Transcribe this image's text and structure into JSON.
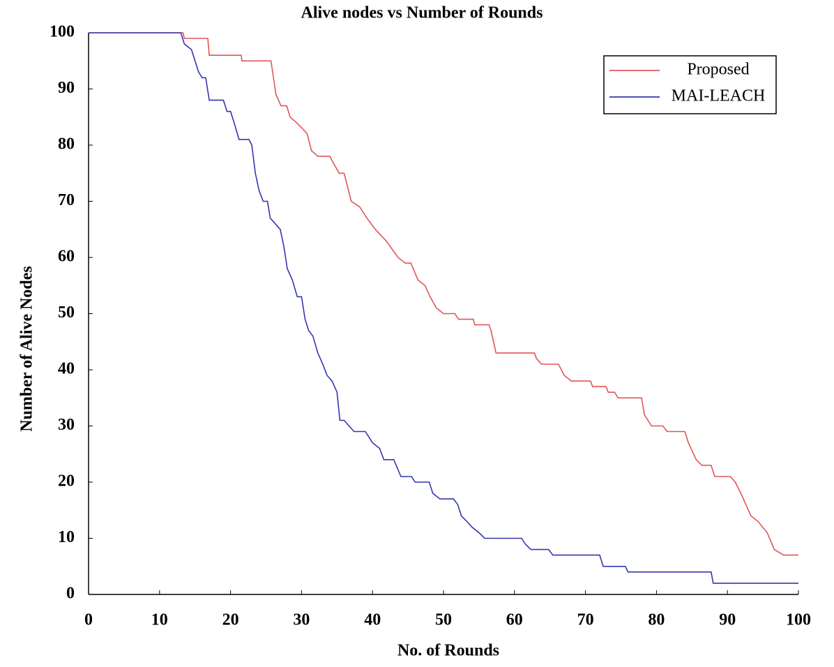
{
  "chart_data": {
    "type": "line",
    "title": "Alive nodes vs Number of Rounds",
    "x_label": "No. of Rounds",
    "y_label": "Number of Alive Nodes",
    "xlim": [
      0,
      100
    ],
    "ylim": [
      0,
      100
    ],
    "xticks": [
      0,
      10,
      20,
      30,
      40,
      50,
      60,
      70,
      80,
      90,
      100
    ],
    "yticks": [
      0,
      10,
      20,
      30,
      40,
      50,
      60,
      70,
      80,
      90,
      100
    ],
    "legend": "upper right",
    "series": [
      {
        "name": "Proposed",
        "color": "#e05555",
        "x": [
          0,
          13.3,
          13.5,
          16.8,
          17,
          21.5,
          21.6,
          25.7,
          26.4,
          27.1,
          27.9,
          28.4,
          29.3,
          30.1,
          30.8,
          31.4,
          32.3,
          34,
          34.4,
          35.3,
          36,
          36.4,
          37,
          38.2,
          39.2,
          40.4,
          41.9,
          43.6,
          44.6,
          45.4,
          46.4,
          47.4,
          48.1,
          49,
          50,
          51.6,
          52.1,
          54.2,
          54.4,
          56.4,
          56.7,
          57.4,
          62.8,
          63.1,
          63.8,
          66.2,
          67,
          68,
          70.7,
          71,
          72.9,
          73.2,
          74.1,
          74.6,
          77.9,
          78.3,
          79.3,
          80.9,
          81.5,
          84,
          84.5,
          85.6,
          86.4,
          87.7,
          88.2,
          90.4,
          91.1,
          91.9,
          93.3,
          94.3,
          95.6,
          96.6,
          97.9,
          100
        ],
        "values": [
          100,
          100,
          99,
          99,
          96,
          96,
          95,
          95,
          89,
          87,
          87,
          85,
          84,
          83,
          82,
          79,
          78,
          78,
          77,
          75,
          75,
          73,
          70,
          69,
          67,
          65,
          63,
          60,
          59,
          59,
          56,
          55,
          53,
          51,
          50,
          50,
          49,
          49,
          48,
          48,
          47,
          43,
          43,
          42,
          41,
          41,
          39,
          38,
          38,
          37,
          37,
          36,
          36,
          35,
          35,
          32,
          30,
          30,
          29,
          29,
          27,
          24,
          23,
          23,
          21,
          21,
          20,
          18,
          14,
          13,
          11,
          8,
          7,
          7
        ]
      },
      {
        "name": "MAI-LEACH",
        "color": "#3535b0",
        "x": [
          0,
          13,
          13.5,
          14.5,
          15,
          15.5,
          16,
          16.5,
          17,
          19,
          19.5,
          20,
          20.5,
          21.2,
          22.6,
          23,
          23.5,
          24,
          24.6,
          25.2,
          25.6,
          26.3,
          27,
          27.5,
          28,
          28.7,
          29.4,
          30,
          30.5,
          31,
          31.6,
          32.3,
          33,
          33.6,
          34.3,
          35,
          35.4,
          36,
          36.7,
          37.4,
          39,
          40,
          41,
          41.6,
          43,
          44,
          45.5,
          46,
          48,
          48.5,
          49.5,
          51.4,
          52,
          52.5,
          53.3,
          54,
          55,
          55.8,
          61,
          61.5,
          62.3,
          64.8,
          65.4,
          72,
          72.5,
          75.6,
          76,
          87.7,
          88,
          100
        ],
        "values": [
          100,
          100,
          98,
          97,
          95,
          93,
          92,
          92,
          88,
          88,
          86,
          86,
          84,
          81,
          81,
          80,
          75,
          72,
          70,
          70,
          67,
          66,
          65,
          62,
          58,
          56,
          53,
          53,
          49,
          47,
          46,
          43,
          41,
          39,
          38,
          36,
          31,
          31,
          30,
          29,
          29,
          27,
          26,
          24,
          24,
          21,
          21,
          20,
          20,
          18,
          17,
          17,
          16,
          14,
          13,
          12,
          11,
          10,
          10,
          9,
          8,
          8,
          7,
          7,
          5,
          5,
          4,
          4,
          2,
          2
        ]
      }
    ]
  }
}
